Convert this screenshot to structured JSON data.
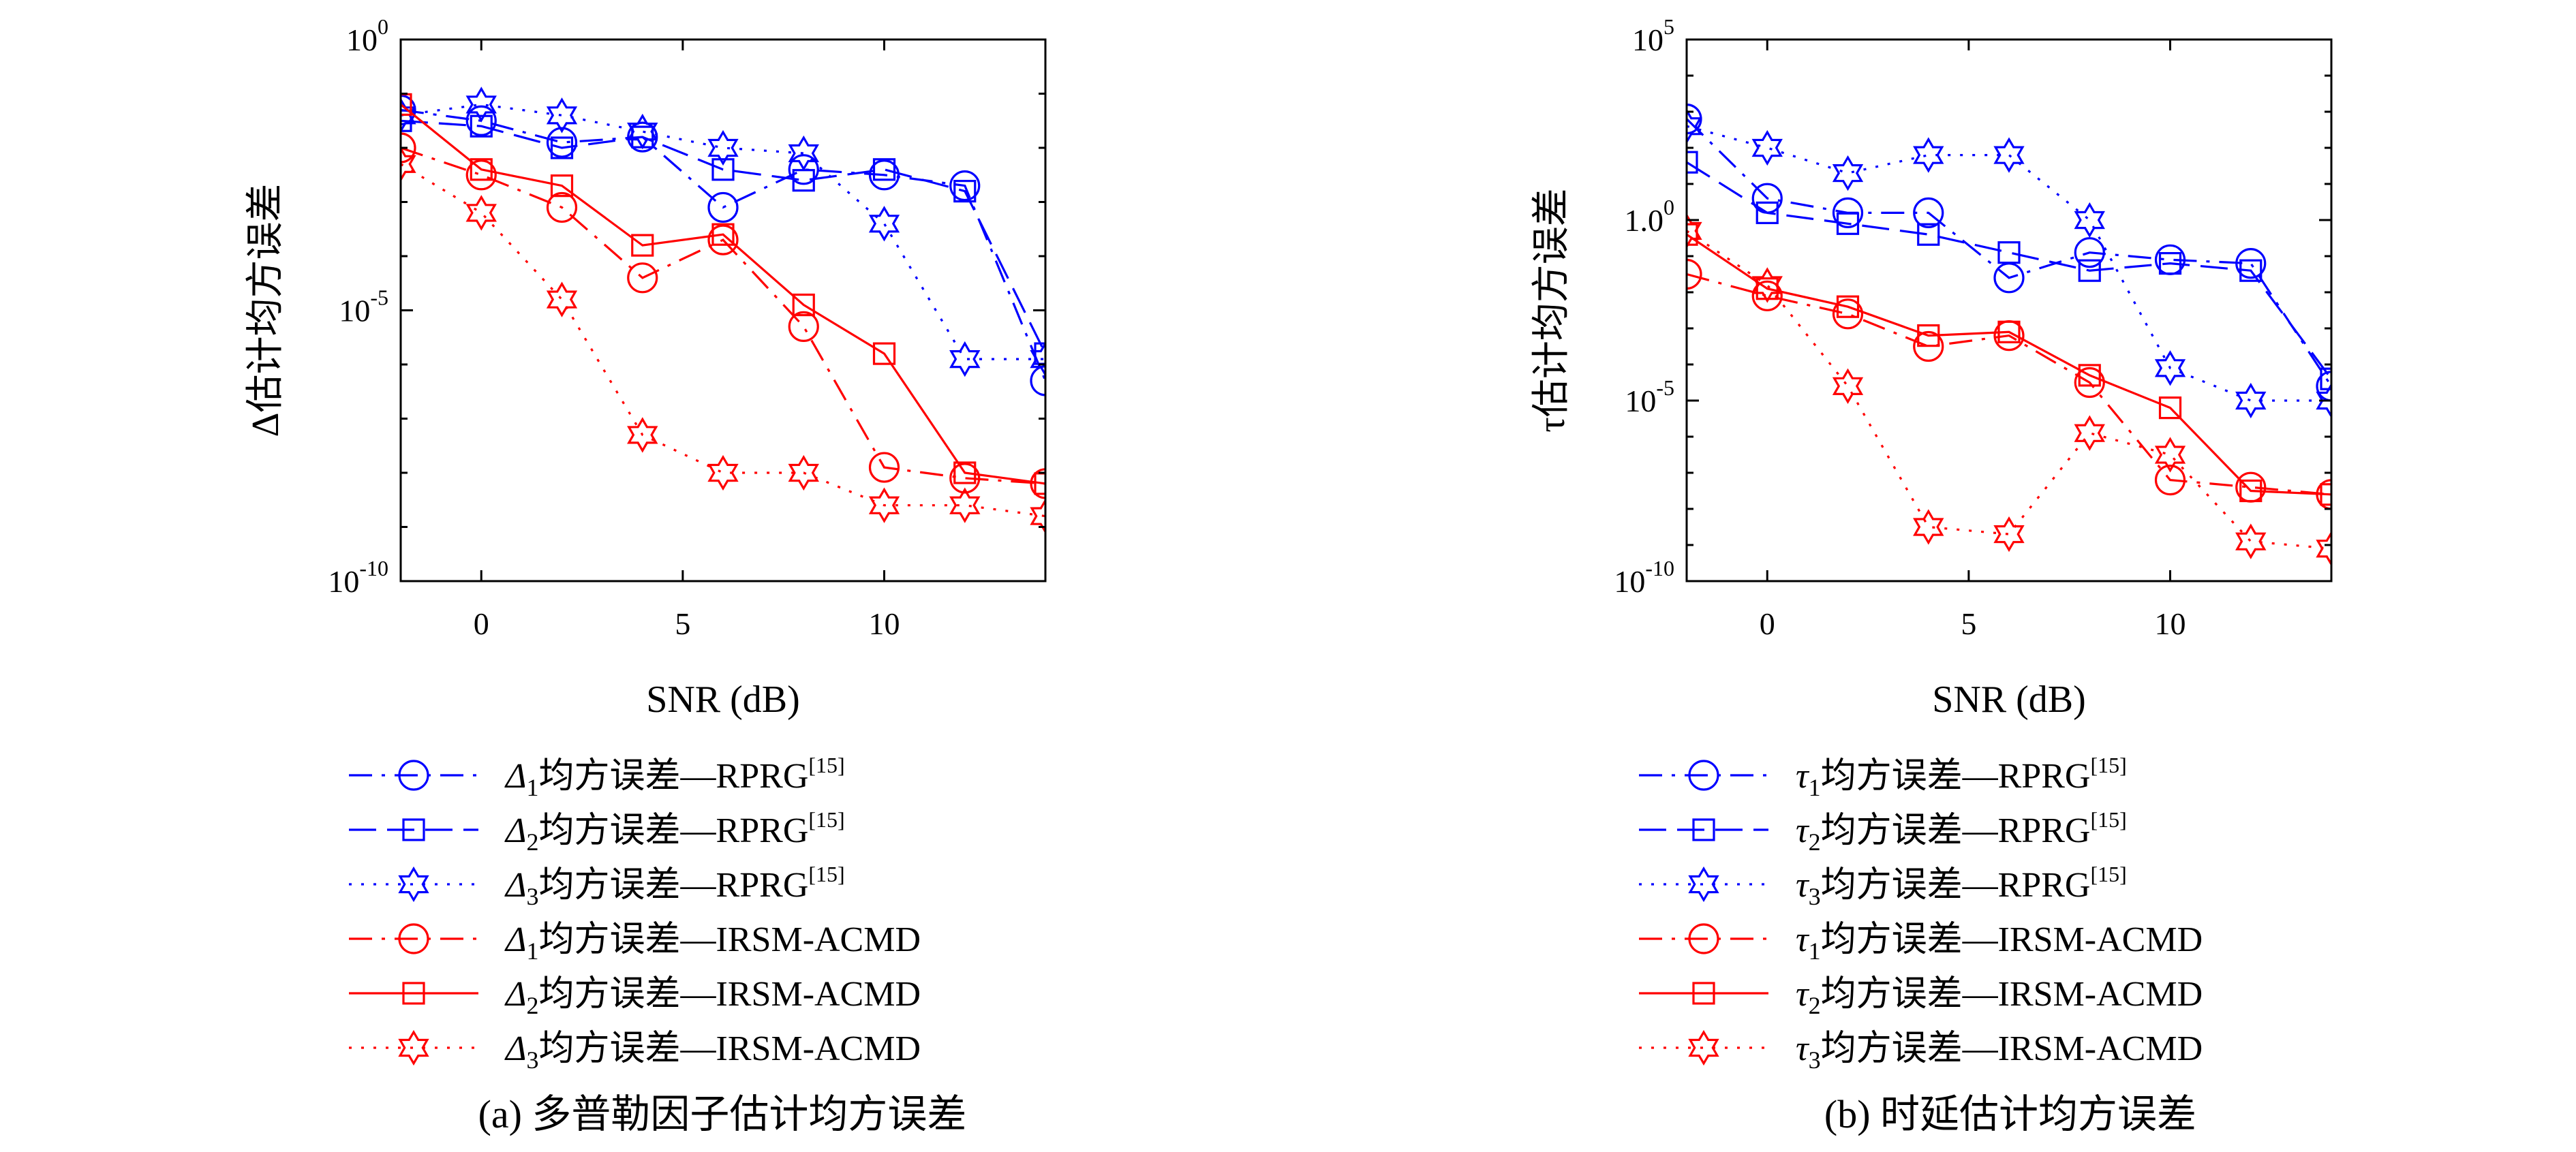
{
  "chart_data": [
    {
      "type": "line",
      "panel_label": "(a) 多普勒因子估计均方误差",
      "xlabel": "SNR (dB)",
      "ylabel": "Δ估计均方误差",
      "xlim": [
        -2,
        14
      ],
      "ylim_log10": [
        -10,
        0
      ],
      "y_scale": "log",
      "xticks": [
        0,
        5,
        10
      ],
      "xtick_labels": [
        "0",
        "5",
        "10"
      ],
      "ytick_labels": [
        {
          "base": "10",
          "exp": "0"
        },
        {
          "base": "10",
          "exp": "-5"
        },
        {
          "base": "10",
          "exp": "-10"
        }
      ],
      "grid": false,
      "legend_position": "below",
      "x": [
        -2,
        0,
        2,
        4,
        6,
        8,
        10,
        12,
        14
      ],
      "series": [
        {
          "name_main": "Δ",
          "name_sub": "1",
          "name_rest": "均方误差—RPRG",
          "name_sup": "[15]",
          "color": "#0000ff",
          "linestyle": "dashdot",
          "marker": "circle",
          "log10_values": [
            -1.3,
            -1.5,
            -1.9,
            -1.8,
            -3.1,
            -2.4,
            -2.5,
            -2.7,
            -6.3
          ]
        },
        {
          "name_main": "Δ",
          "name_sub": "2",
          "name_rest": "均方误差—RPRG",
          "name_sup": "[15]",
          "color": "#0000ff",
          "linestyle": "dashed",
          "marker": "square",
          "log10_values": [
            -1.5,
            -1.6,
            -2.0,
            -1.8,
            -2.4,
            -2.6,
            -2.4,
            -2.8,
            -5.8
          ]
        },
        {
          "name_main": "Δ",
          "name_sub": "3",
          "name_rest": "均方误差—RPRG",
          "name_sup": "[15]",
          "color": "#0000ff",
          "linestyle": "dotted",
          "marker": "star",
          "log10_values": [
            -1.4,
            -1.2,
            -1.4,
            -1.7,
            -2.0,
            -2.1,
            -3.4,
            -5.9,
            -5.9
          ]
        },
        {
          "name_main": "Δ",
          "name_sub": "1",
          "name_rest": "均方误差—IRSM-ACMD",
          "name_sup": "",
          "color": "#ff0000",
          "linestyle": "dashdot",
          "marker": "circle",
          "log10_values": [
            -2.0,
            -2.5,
            -3.1,
            -4.4,
            -3.7,
            -5.3,
            -7.9,
            -8.1,
            -8.2
          ]
        },
        {
          "name_main": "Δ",
          "name_sub": "2",
          "name_rest": "均方误差—IRSM-ACMD",
          "name_sup": "",
          "color": "#ff0000",
          "linestyle": "solid",
          "marker": "square",
          "log10_values": [
            -1.2,
            -2.4,
            -2.7,
            -3.8,
            -3.6,
            -4.9,
            -5.8,
            -8.0,
            -8.2
          ]
        },
        {
          "name_main": "Δ",
          "name_sub": "3",
          "name_rest": "均方误差—IRSM-ACMD",
          "name_sup": "",
          "color": "#ff0000",
          "linestyle": "dotted",
          "marker": "star",
          "log10_values": [
            -2.3,
            -3.2,
            -4.8,
            -7.3,
            -8.0,
            -8.0,
            -8.6,
            -8.6,
            -8.8
          ]
        }
      ]
    },
    {
      "type": "line",
      "panel_label": "(b) 时延估计均方误差",
      "xlabel": "SNR (dB)",
      "ylabel": "τ估计均方误差",
      "xlim": [
        -2,
        14
      ],
      "ylim_log10": [
        -10,
        5
      ],
      "y_scale": "log",
      "xticks": [
        0,
        5,
        10
      ],
      "xtick_labels": [
        "0",
        "5",
        "10"
      ],
      "ytick_labels": [
        {
          "base": "10",
          "exp": "5"
        },
        {
          "base": "1.0",
          "exp": "0"
        },
        {
          "base": "10",
          "exp": "-5"
        },
        {
          "base": "10",
          "exp": "-10"
        }
      ],
      "grid": false,
      "legend_position": "below",
      "x": [
        -2,
        0,
        2,
        4,
        6,
        8,
        10,
        12,
        14
      ],
      "series": [
        {
          "name_main": "τ",
          "name_sub": "1",
          "name_rest": "均方误差—RPRG",
          "name_sup": "[15]",
          "color": "#0000ff",
          "linestyle": "dashdot",
          "marker": "circle",
          "log10_values": [
            2.8,
            0.6,
            0.2,
            0.2,
            -1.6,
            -0.9,
            -1.1,
            -1.2,
            -4.6
          ]
        },
        {
          "name_main": "τ",
          "name_sub": "2",
          "name_rest": "均方误差—RPRG",
          "name_sup": "[15]",
          "color": "#0000ff",
          "linestyle": "dashed",
          "marker": "square",
          "log10_values": [
            1.6,
            0.2,
            -0.1,
            -0.4,
            -0.9,
            -1.4,
            -1.2,
            -1.4,
            -4.4
          ]
        },
        {
          "name_main": "τ",
          "name_sub": "3",
          "name_rest": "均方误差—RPRG",
          "name_sup": "[15]",
          "color": "#0000ff",
          "linestyle": "dotted",
          "marker": "star",
          "log10_values": [
            2.6,
            2.0,
            1.3,
            1.8,
            1.8,
            0.0,
            -4.1,
            -5.0,
            -5.0
          ]
        },
        {
          "name_main": "τ",
          "name_sub": "1",
          "name_rest": "均方误差—IRSM-ACMD",
          "name_sup": "",
          "color": "#ff0000",
          "linestyle": "dashdot",
          "marker": "circle",
          "log10_values": [
            -1.5,
            -2.1,
            -2.6,
            -3.5,
            -3.2,
            -4.5,
            -7.2,
            -7.4,
            -7.6
          ]
        },
        {
          "name_main": "τ",
          "name_sub": "2",
          "name_rest": "均方误差—IRSM-ACMD",
          "name_sup": "",
          "color": "#ff0000",
          "linestyle": "solid",
          "marker": "square",
          "log10_values": [
            -0.4,
            -1.9,
            -2.4,
            -3.2,
            -3.1,
            -4.3,
            -5.2,
            -7.5,
            -7.6
          ]
        },
        {
          "name_main": "τ",
          "name_sub": "3",
          "name_rest": "均方误差—IRSM-ACMD",
          "name_sup": "",
          "color": "#ff0000",
          "linestyle": "dotted",
          "marker": "star",
          "log10_values": [
            -0.3,
            -1.8,
            -4.6,
            -8.5,
            -8.7,
            -5.9,
            -6.5,
            -8.9,
            -9.1
          ]
        }
      ]
    }
  ]
}
